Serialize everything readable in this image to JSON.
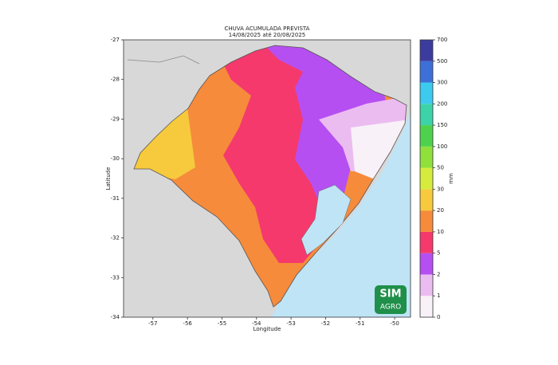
{
  "chart_data": {
    "type": "map",
    "title": "CHUVA ACUMULADA PREVISTA",
    "subtitle": "14/08/2025 até 20/08/2025",
    "xlabel": "Longitude",
    "ylabel": "Latitude",
    "xlim": [
      -57.85,
      -49.54
    ],
    "ylim": [
      -34,
      -27
    ],
    "xticks": [
      -57,
      -56,
      -55,
      -54,
      -53,
      -52,
      -51,
      -50
    ],
    "yticks": [
      -34,
      -33,
      -32,
      -31,
      -30,
      -29,
      -28,
      -27
    ],
    "colorbar": {
      "label": "mm",
      "levels": [
        0,
        1,
        2,
        5,
        10,
        20,
        30,
        50,
        100,
        150,
        200,
        300,
        500,
        700
      ],
      "colors": [
        "#f8f1f8",
        "#ebbcf0",
        "#b64ff2",
        "#f5396c",
        "#f68b3c",
        "#f6ca3c",
        "#d6ec3c",
        "#90e03c",
        "#4ed24e",
        "#3cd3a9",
        "#3ccbee",
        "#3c70d8",
        "#3c3c9f"
      ]
    },
    "logo": {
      "line1": "SIM",
      "line2": "AGRO"
    }
  }
}
